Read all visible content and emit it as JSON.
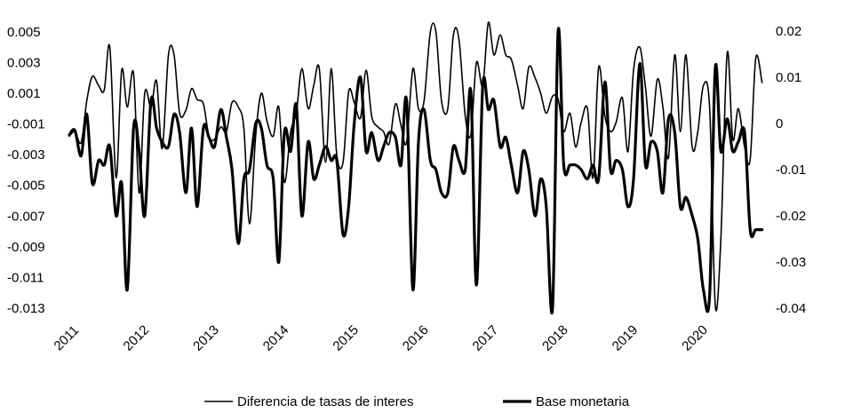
{
  "chart_data": {
    "type": "line",
    "title": "",
    "legend_position": "bottom",
    "grid": false,
    "x_ticks": [
      "2011",
      "2012",
      "2013",
      "2014",
      "2015",
      "2016",
      "2017",
      "2018",
      "2019",
      "2020"
    ],
    "x_range": [
      2011.0,
      2020.95
    ],
    "y_left": {
      "ticks": [
        "0.005",
        "0.003",
        "0.001",
        "-0.001",
        "-0.003",
        "-0.005",
        "-0.007",
        "-0.009",
        "-0.011",
        "-0.013"
      ],
      "range": [
        -0.013,
        0.0058
      ]
    },
    "y_right": {
      "ticks": [
        "0.02",
        "0.01",
        "0",
        "-0.01",
        "-0.02",
        "-0.03",
        "-0.04"
      ],
      "range": [
        -0.04,
        0.0225
      ]
    },
    "series": [
      {
        "name": "Diferencia de tasas de interes",
        "axis": "left",
        "stroke_width": 1.6,
        "x": [
          2011.0,
          2011.08,
          2011.17,
          2011.25,
          2011.33,
          2011.42,
          2011.5,
          2011.58,
          2011.67,
          2011.75,
          2011.83,
          2011.92,
          2012.0,
          2012.08,
          2012.17,
          2012.25,
          2012.33,
          2012.42,
          2012.5,
          2012.58,
          2012.67,
          2012.75,
          2012.83,
          2012.92,
          2013.0,
          2013.08,
          2013.17,
          2013.25,
          2013.33,
          2013.42,
          2013.5,
          2013.58,
          2013.67,
          2013.75,
          2013.83,
          2013.92,
          2014.0,
          2014.08,
          2014.17,
          2014.25,
          2014.33,
          2014.42,
          2014.5,
          2014.58,
          2014.67,
          2014.75,
          2014.83,
          2014.92,
          2015.0,
          2015.08,
          2015.17,
          2015.25,
          2015.33,
          2015.42,
          2015.5,
          2015.58,
          2015.67,
          2015.75,
          2015.83,
          2015.92,
          2016.0,
          2016.08,
          2016.17,
          2016.25,
          2016.33,
          2016.42,
          2016.5,
          2016.58,
          2016.67,
          2016.75,
          2016.83,
          2016.92,
          2017.0,
          2017.08,
          2017.17,
          2017.25,
          2017.33,
          2017.42,
          2017.5,
          2017.58,
          2017.67,
          2017.75,
          2017.83,
          2017.92,
          2018.0,
          2018.08,
          2018.17,
          2018.25,
          2018.33,
          2018.42,
          2018.5,
          2018.58,
          2018.67,
          2018.75,
          2018.83,
          2018.92,
          2019.0,
          2019.08,
          2019.17,
          2019.25,
          2019.33,
          2019.42,
          2019.5,
          2019.58,
          2019.67,
          2019.75,
          2019.83,
          2019.92,
          2020.0,
          2020.08,
          2020.17,
          2020.25,
          2020.33,
          2020.42,
          2020.5,
          2020.58,
          2020.67,
          2020.75,
          2020.83,
          2020.92
        ],
        "values": [
          -0.0018,
          -0.0015,
          -0.0022,
          0.0005,
          0.0021,
          0.0015,
          0.0012,
          0.004,
          -0.0045,
          0.0025,
          0.0001,
          0.0023,
          -0.0055,
          0.001,
          0.0001,
          0.0018,
          -0.0026,
          0.0035,
          0.0035,
          -0.0003,
          -0.0001,
          0.0013,
          0.0006,
          0.0003,
          -0.0018,
          -0.002,
          -0.0012,
          -0.0015,
          0.0004,
          0.0001,
          -0.0013,
          -0.0075,
          -0.0017,
          0.001,
          -0.0008,
          -0.0018,
          0.0001,
          -0.0048,
          -0.0015,
          -0.0003,
          0.0026,
          0.0,
          0.0015,
          0.0026,
          -0.0035,
          0.0026,
          -0.003,
          -0.0035,
          0.0011,
          0.0004,
          -0.0006,
          0.0025,
          -0.0005,
          -0.0012,
          -0.0015,
          -0.0023,
          0.0003,
          -0.0011,
          -0.0022,
          0.0026,
          0.0,
          0.0005,
          0.005,
          0.005,
          0.0005,
          0.0,
          0.0048,
          0.0045,
          -0.0005,
          -0.0017,
          0.003,
          0.0015,
          0.0056,
          0.0035,
          0.0048,
          0.0035,
          0.0032,
          0.0015,
          0.0,
          0.0027,
          0.002,
          0.001,
          -0.0003,
          0.0008,
          0.0006,
          -0.0015,
          -0.0003,
          -0.0025,
          -0.0009,
          0.0,
          -0.0045,
          0.0027,
          -0.0005,
          -0.0015,
          -0.0009,
          0.0007,
          -0.0028,
          0.0025,
          0.004,
          0.0014,
          -0.0018,
          0.0019,
          0.0001,
          -0.0032,
          0.0035,
          -0.0015,
          0.0035,
          -0.0025,
          -0.0015,
          0.0015,
          0.0,
          -0.0128,
          -0.0085,
          0.0036,
          -0.002,
          0.0,
          -0.0025,
          -0.0033,
          0.0033,
          0.0017
        ]
      },
      {
        "name": "Base monetaria",
        "axis": "right",
        "stroke_width": 3.2,
        "x": [
          2011.0,
          2011.08,
          2011.17,
          2011.25,
          2011.33,
          2011.42,
          2011.5,
          2011.58,
          2011.67,
          2011.75,
          2011.83,
          2011.92,
          2012.0,
          2012.08,
          2012.17,
          2012.25,
          2012.33,
          2012.42,
          2012.5,
          2012.58,
          2012.67,
          2012.75,
          2012.83,
          2012.92,
          2013.0,
          2013.08,
          2013.17,
          2013.25,
          2013.33,
          2013.42,
          2013.5,
          2013.58,
          2013.67,
          2013.75,
          2013.83,
          2013.92,
          2014.0,
          2014.08,
          2014.17,
          2014.25,
          2014.33,
          2014.42,
          2014.5,
          2014.58,
          2014.67,
          2014.75,
          2014.83,
          2014.92,
          2015.0,
          2015.08,
          2015.17,
          2015.25,
          2015.33,
          2015.42,
          2015.5,
          2015.58,
          2015.67,
          2015.75,
          2015.83,
          2015.92,
          2016.0,
          2016.08,
          2016.17,
          2016.25,
          2016.33,
          2016.42,
          2016.5,
          2016.58,
          2016.67,
          2016.75,
          2016.83,
          2016.92,
          2017.0,
          2017.08,
          2017.17,
          2017.25,
          2017.33,
          2017.42,
          2017.5,
          2017.58,
          2017.67,
          2017.75,
          2017.83,
          2017.92,
          2018.0,
          2018.08,
          2018.17,
          2018.25,
          2018.33,
          2018.42,
          2018.5,
          2018.58,
          2018.67,
          2018.75,
          2018.83,
          2018.92,
          2019.0,
          2019.08,
          2019.17,
          2019.25,
          2019.33,
          2019.42,
          2019.5,
          2019.58,
          2019.67,
          2019.75,
          2019.83,
          2019.92,
          2020.0,
          2020.08,
          2020.17,
          2020.25,
          2020.33,
          2020.42,
          2020.5,
          2020.58,
          2020.67,
          2020.75,
          2020.83,
          2020.92
        ],
        "values": [
          -0.0025,
          -0.0015,
          -0.007,
          0.002,
          -0.013,
          -0.008,
          -0.009,
          -0.005,
          -0.02,
          -0.013,
          -0.036,
          -0.001,
          -0.006,
          -0.02,
          0.005,
          -0.001,
          -0.004,
          -0.005,
          0.002,
          -0.002,
          -0.015,
          -0.001,
          -0.018,
          -0.001,
          -0.003,
          -0.005,
          0.003,
          -0.003,
          -0.01,
          -0.026,
          -0.012,
          -0.01,
          0.0,
          -0.001,
          -0.009,
          -0.012,
          -0.03,
          -0.002,
          -0.006,
          0.004,
          -0.02,
          -0.004,
          -0.012,
          -0.009,
          -0.005,
          -0.008,
          -0.008,
          -0.024,
          -0.018,
          0.0,
          0.01,
          -0.006,
          -0.002,
          -0.008,
          -0.005,
          -0.002,
          -0.003,
          -0.009,
          0.005,
          -0.036,
          -0.004,
          0.003,
          -0.008,
          -0.01,
          -0.015,
          -0.015,
          -0.005,
          -0.008,
          -0.01,
          0.007,
          -0.035,
          0.008,
          0.003,
          0.005,
          -0.005,
          -0.003,
          -0.009,
          -0.015,
          -0.006,
          -0.01,
          -0.02,
          -0.012,
          -0.018,
          -0.04,
          0.02,
          -0.009,
          -0.009,
          -0.009,
          -0.01,
          -0.012,
          -0.009,
          -0.012,
          0.009,
          -0.01,
          -0.008,
          -0.01,
          -0.018,
          -0.012,
          0.013,
          -0.009,
          -0.004,
          -0.006,
          -0.015,
          0.001,
          -0.002,
          -0.018,
          -0.016,
          -0.02,
          -0.025,
          -0.036,
          -0.037,
          0.012,
          -0.006,
          0.001,
          -0.006,
          -0.004,
          -0.002,
          -0.023,
          -0.023,
          -0.023
        ]
      }
    ]
  }
}
